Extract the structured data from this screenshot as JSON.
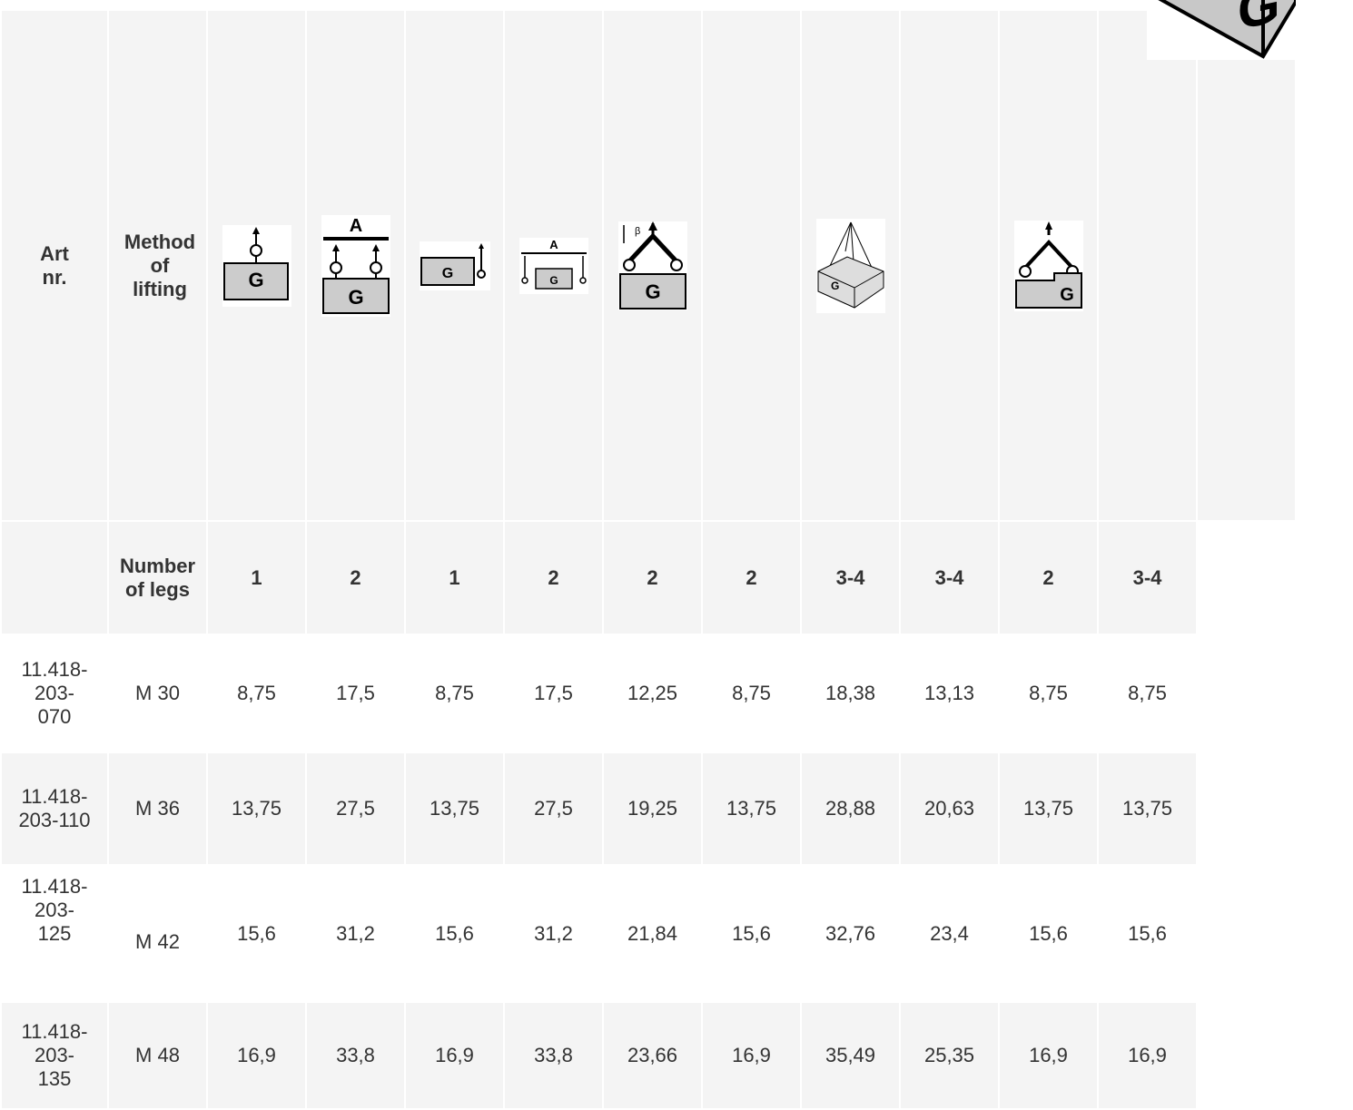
{
  "table": {
    "header": {
      "art": "Art nr.",
      "method": "Method of lifting"
    },
    "legs_row": {
      "label": "Number of legs",
      "legs": [
        "1",
        "2",
        "1",
        "2",
        "2",
        "2",
        "3-4",
        "3-4",
        "2",
        "3-4"
      ]
    },
    "rows": [
      {
        "art": "11.418-203-070",
        "size": "M 30",
        "values": [
          "8,75",
          "17,5",
          "8,75",
          "17,5",
          "12,25",
          "8,75",
          "18,38",
          "13,13",
          "8,75",
          "8,75"
        ]
      },
      {
        "art": "11.418-203-110",
        "size": "M 36",
        "values": [
          "13,75",
          "27,5",
          "13,75",
          "27,5",
          "19,25",
          "13,75",
          "28,88",
          "20,63",
          "13,75",
          "13,75"
        ]
      },
      {
        "art": "11.418-203-125",
        "size": "M 42",
        "values": [
          "15,6",
          "31,2",
          "15,6",
          "31,2",
          "21,84",
          "15,6",
          "32,76",
          "23,4",
          "15,6",
          "15,6"
        ]
      },
      {
        "art": "11.418-203-135",
        "size": "M 48",
        "values": [
          "16,9",
          "33,8",
          "16,9",
          "33,8",
          "23,66",
          "16,9",
          "35,49",
          "25,35",
          "16,9",
          "16,9"
        ]
      }
    ]
  }
}
